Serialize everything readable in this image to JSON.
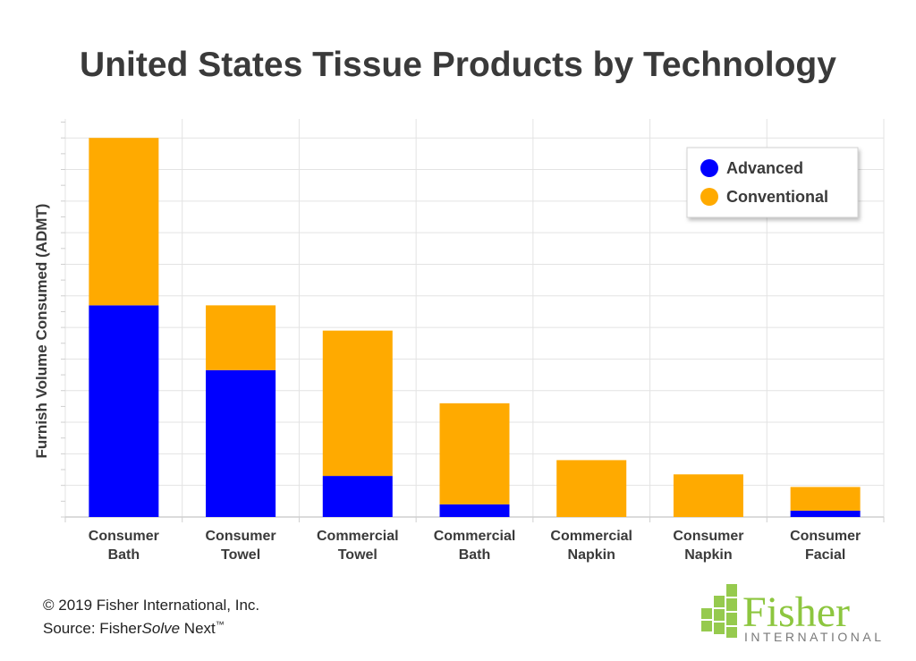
{
  "chart_data": {
    "type": "bar",
    "stacked": true,
    "title": "United States Tissue Products by Technology",
    "ylabel": "Furnish Volume Consumed (ADMT)",
    "xlabel": "",
    "categories": [
      [
        "Consumer",
        "Bath"
      ],
      [
        "Consumer",
        "Towel"
      ],
      [
        "Commercial",
        "Towel"
      ],
      [
        "Commercial",
        "Bath"
      ],
      [
        "Commercial",
        "Napkin"
      ],
      [
        "Consumer",
        "Napkin"
      ],
      [
        "Consumer",
        "Facial"
      ]
    ],
    "series": [
      {
        "name": "Advanced",
        "color": "#0000ff",
        "values": [
          6.7,
          4.65,
          1.3,
          0.4,
          0,
          0,
          0.2
        ]
      },
      {
        "name": "Conventional",
        "color": "#ffaa00",
        "values": [
          5.3,
          2.05,
          4.6,
          3.2,
          1.8,
          1.35,
          0.75
        ]
      }
    ],
    "ylim": [
      0,
      12.6
    ],
    "y_ticks_labeled": false,
    "grid": true,
    "legend_position": "top-right"
  },
  "footer": {
    "copyright": "© 2019 Fisher International, Inc.",
    "source_prefix": "Source: Fisher",
    "source_italic": "Solve",
    "source_suffix": " Next",
    "source_tm": "™"
  },
  "logo": {
    "word": "Fisher",
    "sub": "INTERNATIONAL",
    "color": "#8dc63f"
  }
}
